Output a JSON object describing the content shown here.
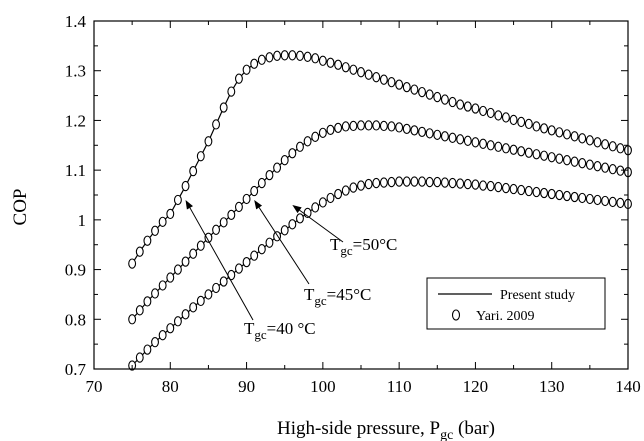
{
  "chart_data": {
    "type": "line",
    "xlabel": "High-side pressure, P",
    "xlabel_sub": "gc",
    "xlabel_unit": " (bar)",
    "ylabel": "COP",
    "xlim": [
      70,
      140
    ],
    "ylim": [
      0.7,
      1.4
    ],
    "xticks": [
      70,
      80,
      90,
      100,
      110,
      120,
      130,
      140
    ],
    "xtick_labels": [
      "70",
      "80",
      "90",
      "100",
      "110",
      "120",
      "130",
      "140"
    ],
    "yticks": [
      0.7,
      0.8,
      0.9,
      1.0,
      1.1,
      1.2,
      1.3,
      1.4
    ],
    "ytick_labels": [
      "0.7",
      "0.8",
      "0.9",
      "1",
      "1.1",
      "1.2",
      "1.3",
      "1.4"
    ],
    "grid": false,
    "legend": {
      "position": "lower-right",
      "entries": [
        {
          "label": "Present study",
          "marker": "line"
        },
        {
          "label": "Yari. 2009",
          "marker": "open-circle"
        }
      ]
    },
    "series": [
      {
        "key": "T50",
        "points": [
          [
            75,
            0.912
          ],
          [
            76,
            0.936
          ],
          [
            77,
            0.958
          ],
          [
            78,
            0.978
          ],
          [
            79,
            0.996
          ],
          [
            80,
            1.012
          ],
          [
            81,
            1.04
          ],
          [
            82,
            1.068
          ],
          [
            83,
            1.098
          ],
          [
            84,
            1.128
          ],
          [
            85,
            1.158
          ],
          [
            86,
            1.192
          ],
          [
            87,
            1.226
          ],
          [
            88,
            1.258
          ],
          [
            89,
            1.284
          ],
          [
            90,
            1.302
          ],
          [
            91,
            1.314
          ],
          [
            92,
            1.322
          ],
          [
            93,
            1.327
          ],
          [
            94,
            1.33
          ],
          [
            95,
            1.331
          ],
          [
            96,
            1.331
          ],
          [
            97,
            1.33
          ],
          [
            98,
            1.328
          ],
          [
            99,
            1.325
          ],
          [
            100,
            1.32
          ],
          [
            101,
            1.316
          ],
          [
            102,
            1.312
          ],
          [
            103,
            1.307
          ],
          [
            104,
            1.302
          ],
          [
            105,
            1.297
          ],
          [
            106,
            1.292
          ],
          [
            107,
            1.287
          ],
          [
            108,
            1.282
          ],
          [
            109,
            1.277
          ],
          [
            110,
            1.272
          ],
          [
            111,
            1.267
          ],
          [
            112,
            1.262
          ],
          [
            113,
            1.257
          ],
          [
            114,
            1.252
          ],
          [
            115,
            1.247
          ],
          [
            116,
            1.242
          ],
          [
            117,
            1.237
          ],
          [
            118,
            1.232
          ],
          [
            119,
            1.228
          ],
          [
            120,
            1.224
          ],
          [
            121,
            1.219
          ],
          [
            122,
            1.215
          ],
          [
            123,
            1.21
          ],
          [
            124,
            1.206
          ],
          [
            125,
            1.201
          ],
          [
            126,
            1.197
          ],
          [
            127,
            1.193
          ],
          [
            128,
            1.188
          ],
          [
            129,
            1.184
          ],
          [
            130,
            1.18
          ],
          [
            131,
            1.176
          ],
          [
            132,
            1.172
          ],
          [
            133,
            1.168
          ],
          [
            134,
            1.164
          ],
          [
            135,
            1.16
          ],
          [
            136,
            1.156
          ],
          [
            137,
            1.152
          ],
          [
            138,
            1.148
          ],
          [
            139,
            1.144
          ],
          [
            140,
            1.14
          ]
        ]
      },
      {
        "key": "T45",
        "points": [
          [
            75,
            0.8
          ],
          [
            76,
            0.818
          ],
          [
            77,
            0.836
          ],
          [
            78,
            0.852
          ],
          [
            79,
            0.868
          ],
          [
            80,
            0.884
          ],
          [
            81,
            0.9
          ],
          [
            82,
            0.916
          ],
          [
            83,
            0.932
          ],
          [
            84,
            0.948
          ],
          [
            85,
            0.964
          ],
          [
            86,
            0.98
          ],
          [
            87,
            0.995
          ],
          [
            88,
            1.01
          ],
          [
            89,
            1.026
          ],
          [
            90,
            1.042
          ],
          [
            91,
            1.058
          ],
          [
            92,
            1.074
          ],
          [
            93,
            1.09
          ],
          [
            94,
            1.105
          ],
          [
            95,
            1.12
          ],
          [
            96,
            1.134
          ],
          [
            97,
            1.147
          ],
          [
            98,
            1.158
          ],
          [
            99,
            1.167
          ],
          [
            100,
            1.175
          ],
          [
            101,
            1.181
          ],
          [
            102,
            1.185
          ],
          [
            103,
            1.188
          ],
          [
            104,
            1.189
          ],
          [
            105,
            1.19
          ],
          [
            106,
            1.19
          ],
          [
            107,
            1.19
          ],
          [
            108,
            1.189
          ],
          [
            109,
            1.188
          ],
          [
            110,
            1.186
          ],
          [
            111,
            1.183
          ],
          [
            112,
            1.18
          ],
          [
            113,
            1.177
          ],
          [
            114,
            1.174
          ],
          [
            115,
            1.171
          ],
          [
            116,
            1.168
          ],
          [
            117,
            1.165
          ],
          [
            118,
            1.162
          ],
          [
            119,
            1.159
          ],
          [
            120,
            1.156
          ],
          [
            121,
            1.153
          ],
          [
            122,
            1.15
          ],
          [
            123,
            1.147
          ],
          [
            124,
            1.144
          ],
          [
            125,
            1.141
          ],
          [
            126,
            1.138
          ],
          [
            127,
            1.135
          ],
          [
            128,
            1.132
          ],
          [
            129,
            1.129
          ],
          [
            130,
            1.126
          ],
          [
            131,
            1.123
          ],
          [
            132,
            1.12
          ],
          [
            133,
            1.117
          ],
          [
            134,
            1.114
          ],
          [
            135,
            1.111
          ],
          [
            136,
            1.108
          ],
          [
            137,
            1.105
          ],
          [
            138,
            1.102
          ],
          [
            139,
            1.099
          ],
          [
            140,
            1.096
          ]
        ]
      },
      {
        "key": "T40",
        "points": [
          [
            75,
            0.707
          ],
          [
            76,
            0.723
          ],
          [
            77,
            0.739
          ],
          [
            78,
            0.754
          ],
          [
            79,
            0.768
          ],
          [
            80,
            0.782
          ],
          [
            81,
            0.796
          ],
          [
            82,
            0.81
          ],
          [
            83,
            0.824
          ],
          [
            84,
            0.837
          ],
          [
            85,
            0.85
          ],
          [
            86,
            0.863
          ],
          [
            87,
            0.876
          ],
          [
            88,
            0.889
          ],
          [
            89,
            0.902
          ],
          [
            90,
            0.915
          ],
          [
            91,
            0.928
          ],
          [
            92,
            0.941
          ],
          [
            93,
            0.954
          ],
          [
            94,
            0.967
          ],
          [
            95,
            0.979
          ],
          [
            96,
            0.991
          ],
          [
            97,
            1.003
          ],
          [
            98,
            1.014
          ],
          [
            99,
            1.025
          ],
          [
            100,
            1.035
          ],
          [
            101,
            1.044
          ],
          [
            102,
            1.052
          ],
          [
            103,
            1.059
          ],
          [
            104,
            1.065
          ],
          [
            105,
            1.069
          ],
          [
            106,
            1.072
          ],
          [
            107,
            1.074
          ],
          [
            108,
            1.075
          ],
          [
            109,
            1.076
          ],
          [
            110,
            1.077
          ],
          [
            111,
            1.077
          ],
          [
            112,
            1.077
          ],
          [
            113,
            1.077
          ],
          [
            114,
            1.076
          ],
          [
            115,
            1.076
          ],
          [
            116,
            1.075
          ],
          [
            117,
            1.074
          ],
          [
            118,
            1.073
          ],
          [
            119,
            1.072
          ],
          [
            120,
            1.071
          ],
          [
            121,
            1.069
          ],
          [
            122,
            1.068
          ],
          [
            123,
            1.066
          ],
          [
            124,
            1.064
          ],
          [
            125,
            1.062
          ],
          [
            126,
            1.06
          ],
          [
            127,
            1.058
          ],
          [
            128,
            1.056
          ],
          [
            129,
            1.054
          ],
          [
            130,
            1.052
          ],
          [
            131,
            1.05
          ],
          [
            132,
            1.048
          ],
          [
            133,
            1.046
          ],
          [
            134,
            1.044
          ],
          [
            135,
            1.042
          ],
          [
            136,
            1.04
          ],
          [
            137,
            1.038
          ],
          [
            138,
            1.036
          ],
          [
            139,
            1.034
          ],
          [
            140,
            1.032
          ]
        ]
      }
    ],
    "annotations": [
      {
        "key": "T50",
        "main": "T",
        "sub": "gc",
        "rest": "=50°C",
        "arrow_to": [
          96,
          1.03
        ]
      },
      {
        "key": "T45",
        "main": "T",
        "sub": "gc",
        "rest": "=45°C",
        "arrow_to": [
          91,
          1.04
        ]
      },
      {
        "key": "T40",
        "main": "T",
        "sub": "gc",
        "rest": "=40 °C",
        "arrow_to": [
          82,
          1.04
        ]
      }
    ]
  }
}
